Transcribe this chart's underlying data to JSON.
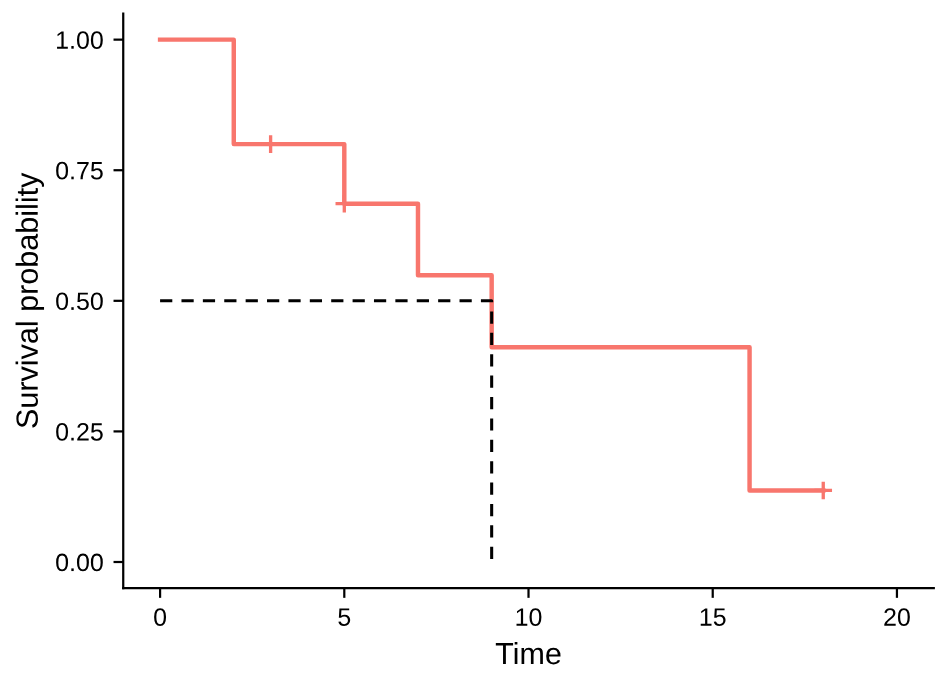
{
  "chart_data": {
    "type": "step",
    "xlabel": "Time",
    "ylabel": "Survival probability",
    "series": [
      {
        "color": "#f8766d",
        "x": [
          0,
          2,
          5,
          7,
          9,
          16,
          18
        ],
        "values": [
          1.0,
          0.8,
          0.686,
          0.549,
          0.411,
          0.137,
          0.137
        ]
      },
      {
        "type": "scatter",
        "color": "#f8766d",
        "marker": "cross",
        "x": [
          3,
          5,
          18
        ],
        "values": [
          0.8,
          0.686,
          0.137
        ]
      },
      {
        "type": "line",
        "color": "#000000",
        "line_style": "dashed",
        "x": [
          0,
          9,
          9
        ],
        "values": [
          0.5,
          0.5,
          0
        ]
      }
    ],
    "xlim": [
      -1,
      21
    ],
    "xticks": [
      0,
      5,
      10,
      15,
      20
    ],
    "ylim": [
      -0.05,
      1.05
    ],
    "yticks": [
      {
        "value": 0,
        "label": "0.00"
      },
      {
        "value": 0.25,
        "label": "0.25"
      },
      {
        "value": 0.5,
        "label": "0.50"
      },
      {
        "value": 0.75,
        "label": "0.75"
      },
      {
        "value": 1,
        "label": "1.00"
      }
    ],
    "grid": false,
    "legend": false
  }
}
